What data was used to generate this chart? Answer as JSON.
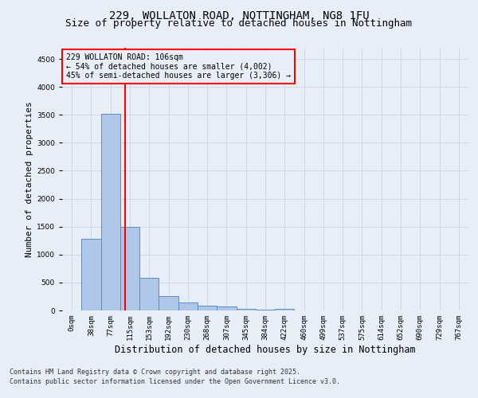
{
  "title_line1": "229, WOLLATON ROAD, NOTTINGHAM, NG8 1FU",
  "title_line2": "Size of property relative to detached houses in Nottingham",
  "xlabel": "Distribution of detached houses by size in Nottingham",
  "ylabel": "Number of detached properties",
  "bar_labels": [
    "0sqm",
    "38sqm",
    "77sqm",
    "115sqm",
    "153sqm",
    "192sqm",
    "230sqm",
    "268sqm",
    "307sqm",
    "345sqm",
    "384sqm",
    "422sqm",
    "460sqm",
    "499sqm",
    "537sqm",
    "575sqm",
    "614sqm",
    "652sqm",
    "690sqm",
    "729sqm",
    "767sqm"
  ],
  "bar_values": [
    5,
    1280,
    3520,
    1490,
    590,
    260,
    140,
    80,
    65,
    35,
    10,
    30,
    5,
    0,
    0,
    0,
    0,
    0,
    0,
    0,
    0
  ],
  "bar_color": "#aec6e8",
  "bar_edge_color": "#5a8fc2",
  "vline_x": 2.75,
  "vline_color": "red",
  "annotation_text": "229 WOLLATON ROAD: 106sqm\n← 54% of detached houses are smaller (4,002)\n45% of semi-detached houses are larger (3,306) →",
  "annotation_box_color": "red",
  "ylim": [
    0,
    4700
  ],
  "yticks": [
    0,
    500,
    1000,
    1500,
    2000,
    2500,
    3000,
    3500,
    4000,
    4500
  ],
  "grid_color": "#d0d8e8",
  "background_color": "#e8eef8",
  "footer_line1": "Contains HM Land Registry data © Crown copyright and database right 2025.",
  "footer_line2": "Contains public sector information licensed under the Open Government Licence v3.0.",
  "title_fontsize": 10,
  "subtitle_fontsize": 9,
  "axis_label_fontsize": 8,
  "tick_fontsize": 6.5,
  "annotation_fontsize": 7,
  "footer_fontsize": 6
}
